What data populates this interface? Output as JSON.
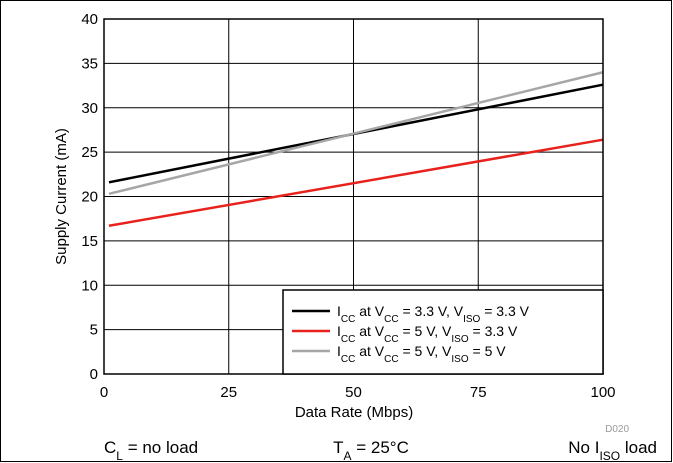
{
  "chart_data": {
    "type": "line",
    "xlabel": "Data Rate (Mbps)",
    "ylabel": "Supply Current (mA)",
    "xlim": [
      0,
      100
    ],
    "ylim": [
      0,
      40
    ],
    "xticks": [
      0,
      25,
      50,
      75,
      100
    ],
    "yticks": [
      0,
      5,
      10,
      15,
      20,
      25,
      30,
      35,
      40
    ],
    "grid": true,
    "legend_position": "bottom-right",
    "series": [
      {
        "name": "ICC at VCC = 3.3 V, VISO = 3.3 V",
        "label_parts": [
          {
            "t": "I",
            "s": false
          },
          {
            "t": "CC",
            "s": true
          },
          {
            "t": " at V",
            "s": false
          },
          {
            "t": "CC",
            "s": true
          },
          {
            "t": " = 3.3 V, V",
            "s": false
          },
          {
            "t": "ISO",
            "s": true
          },
          {
            "t": " = 3.3 V",
            "s": false
          }
        ],
        "color": "#000000",
        "x": [
          1,
          100
        ],
        "y": [
          21.6,
          32.6
        ]
      },
      {
        "name": "ICC at VCC = 5 V, VISO = 3.3 V",
        "label_parts": [
          {
            "t": "I",
            "s": false
          },
          {
            "t": "CC",
            "s": true
          },
          {
            "t": " at V",
            "s": false
          },
          {
            "t": "CC",
            "s": true
          },
          {
            "t": " = 5 V, V",
            "s": false
          },
          {
            "t": "ISO",
            "s": true
          },
          {
            "t": " = 3.3 V",
            "s": false
          }
        ],
        "color": "#e8211c",
        "x": [
          1,
          100
        ],
        "y": [
          16.7,
          26.4
        ]
      },
      {
        "name": "ICC at VCC = 5 V, VISO = 5 V",
        "label_parts": [
          {
            "t": "I",
            "s": false
          },
          {
            "t": "CC",
            "s": true
          },
          {
            "t": " at V",
            "s": false
          },
          {
            "t": "CC",
            "s": true
          },
          {
            "t": " = 5 V, V",
            "s": false
          },
          {
            "t": "ISO",
            "s": true
          },
          {
            "t": " = 5 V",
            "s": false
          }
        ],
        "color": "#a6a6a6",
        "x": [
          1,
          100
        ],
        "y": [
          20.3,
          34.0
        ]
      }
    ]
  },
  "figure_code": "D020",
  "footnotes": [
    {
      "parts": [
        {
          "t": "C",
          "s": false
        },
        {
          "t": "L",
          "s": true
        },
        {
          "t": " = no load",
          "s": false
        }
      ]
    },
    {
      "parts": [
        {
          "t": "T",
          "s": false
        },
        {
          "t": "A",
          "s": true
        },
        {
          "t": " = 25°C",
          "s": false
        }
      ]
    },
    {
      "parts": [
        {
          "t": "No I",
          "s": false
        },
        {
          "t": "ISO",
          "s": true
        },
        {
          "t": " load",
          "s": false
        }
      ]
    }
  ]
}
